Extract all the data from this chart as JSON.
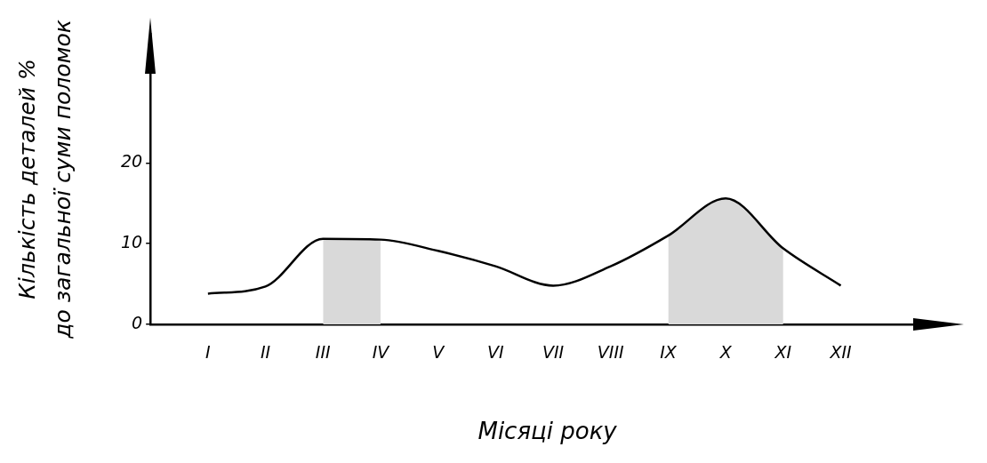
{
  "chart_data": {
    "type": "line",
    "xlabel": "Місяці року",
    "ylabel": "Кількість деталей %\nдо загальної суми поломок",
    "categories": [
      "I",
      "II",
      "III",
      "IV",
      "V",
      "VI",
      "VII",
      "VIII",
      "IX",
      "X",
      "XI",
      "XII"
    ],
    "series": [
      {
        "color": "#000000",
        "values": [
          3.8,
          4.7,
          10.6,
          10.5,
          9.1,
          7.2,
          4.8,
          7.2,
          11,
          15.6,
          9.4,
          4.8
        ]
      },
      {
        "type": "area",
        "color": "#d9d9d9",
        "values": [
          null,
          null,
          10.6,
          10.5,
          null,
          null,
          null,
          null,
          null,
          null,
          null,
          null
        ]
      },
      {
        "type": "area",
        "color": "#d9d9d9",
        "values": [
          null,
          null,
          null,
          null,
          null,
          null,
          null,
          null,
          11,
          15.6,
          9.4,
          null
        ]
      }
    ],
    "ylim": [
      0,
      36
    ],
    "yticks": [
      0,
      10,
      20
    ],
    "grid": false,
    "legend": false,
    "marker": "none",
    "line_style": "solid"
  }
}
